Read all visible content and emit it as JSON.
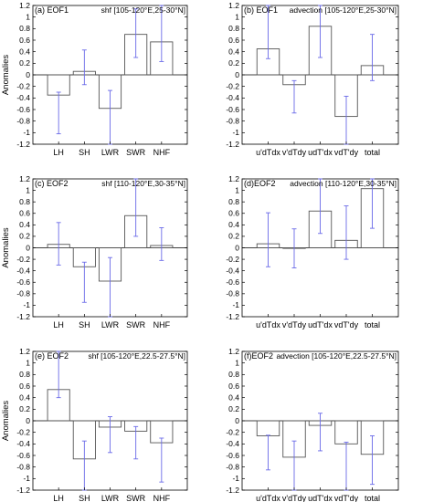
{
  "chart_data": [
    {
      "type": "bar",
      "panel_label": "(a) EOF1",
      "title": "shf  [105-120°E,25-30°N]",
      "ylabel": "Anomalies",
      "ylim": [
        -1.2,
        1.2
      ],
      "yticks": [
        "-1.2",
        "-1",
        "-0.8",
        "-0.6",
        "-0.4",
        "-0.2",
        "0",
        "0.2",
        "0.4",
        "0.6",
        "0.8",
        "1",
        "1.2"
      ],
      "categories": [
        "LH",
        "SH",
        "LWR",
        "SWR",
        "NHF"
      ],
      "values": [
        -0.35,
        0.06,
        -0.58,
        0.7,
        0.57
      ],
      "err_low": [
        -1.02,
        -0.17,
        -1.2,
        0.3,
        0.23
      ],
      "err_high": [
        -0.3,
        0.43,
        -0.27,
        1.14,
        1.2
      ],
      "grid": false
    },
    {
      "type": "bar",
      "panel_label": "(b) EOF1",
      "title": "advection  [105-120°E,25-30°N]",
      "ylabel": "",
      "ylim": [
        -1.2,
        1.2
      ],
      "yticks": [
        "-1.2",
        "-1",
        "-0.8",
        "-0.6",
        "-0.4",
        "-0.2",
        "0",
        "0.2",
        "0.4",
        "0.6",
        "0.8",
        "1",
        "1.2"
      ],
      "categories": [
        "u'dTdx",
        "v'dTdy",
        "udT'dx",
        "vdT'dy",
        "total"
      ],
      "values": [
        0.45,
        -0.17,
        0.84,
        -0.72,
        0.16
      ],
      "err_low": [
        0.28,
        -0.66,
        0.3,
        -1.2,
        -0.1
      ],
      "err_high": [
        1.2,
        -0.1,
        1.2,
        -0.37,
        0.7
      ],
      "grid": false
    },
    {
      "type": "bar",
      "panel_label": "(c) EOF2",
      "title": "shf  [110-120°E,30-35°N]",
      "ylabel": "Anomalies",
      "ylim": [
        -1.2,
        1.2
      ],
      "yticks": [
        "-1.2",
        "-1",
        "-0.8",
        "-0.6",
        "-0.4",
        "-0.2",
        "0",
        "0.2",
        "0.4",
        "0.6",
        "0.8",
        "1",
        "1.2"
      ],
      "categories": [
        "LH",
        "SH",
        "LWR",
        "SWR",
        "NHF"
      ],
      "values": [
        0.06,
        -0.33,
        -0.58,
        0.56,
        0.04
      ],
      "err_low": [
        -0.3,
        -0.95,
        -1.2,
        0.2,
        -0.22
      ],
      "err_high": [
        0.44,
        -0.25,
        -0.17,
        1.2,
        0.35
      ],
      "grid": false
    },
    {
      "type": "bar",
      "panel_label": "(d)EOF2",
      "title": "advection  [110-120°E,30-35°N]",
      "ylabel": "",
      "ylim": [
        -1.2,
        1.2
      ],
      "yticks": [
        "-1.2",
        "-1",
        "-0.8",
        "-0.6",
        "-0.4",
        "-0.2",
        "0",
        "0.2",
        "0.4",
        "0.6",
        "0.8",
        "1",
        "1.2"
      ],
      "categories": [
        "u'dTdx",
        "v'dTdy",
        "udT'dx",
        "vdT'dy",
        "total"
      ],
      "values": [
        0.07,
        -0.01,
        0.64,
        0.13,
        1.03
      ],
      "err_low": [
        -0.33,
        -0.35,
        0.25,
        -0.2,
        0.34
      ],
      "err_high": [
        0.61,
        0.33,
        1.2,
        0.73,
        1.2
      ],
      "grid": false
    },
    {
      "type": "bar",
      "panel_label": "(e) EOF2",
      "title": "shf  [105-120°E,22.5-27.5°N]",
      "ylabel": "Anomalies",
      "ylim": [
        -1.2,
        1.2
      ],
      "yticks": [
        "-1.2",
        "-1",
        "-0.8",
        "-0.6",
        "-0.4",
        "-0.2",
        "0",
        "0.2",
        "0.4",
        "0.6",
        "0.8",
        "1",
        "1.2"
      ],
      "categories": [
        "LH",
        "SH",
        "LWR",
        "SWR",
        "NHF"
      ],
      "values": [
        0.54,
        -0.66,
        -0.11,
        -0.18,
        -0.38
      ],
      "err_low": [
        0.4,
        -1.2,
        -0.55,
        -0.66,
        -1.06
      ],
      "err_high": [
        1.2,
        -0.35,
        0.07,
        -0.1,
        -0.3
      ],
      "grid": false
    },
    {
      "type": "bar",
      "panel_label": "(f)EOF2",
      "title": "advection  [105-120°E,22.5-27.5°N]",
      "ylabel": "",
      "ylim": [
        -1.2,
        1.2
      ],
      "yticks": [
        "-1.2",
        "-1",
        "-0.8",
        "-0.6",
        "-0.4",
        "-0.2",
        "0",
        "0.2",
        "0.4",
        "0.6",
        "0.8",
        "1",
        "1.2"
      ],
      "categories": [
        "u'dTdx",
        "v'dTdy",
        "udT'dx",
        "vdT'dy",
        "total"
      ],
      "values": [
        -0.26,
        -0.63,
        -0.08,
        -0.4,
        -0.58
      ],
      "err_low": [
        -0.85,
        -1.2,
        -0.52,
        -1.2,
        -1.1
      ],
      "err_high": [
        -0.25,
        -0.35,
        0.13,
        -0.37,
        -0.26
      ],
      "grid": false
    }
  ],
  "colors": {
    "bar_edge": "#555555",
    "error_bar": "#6a6ae8",
    "axis": "#000000",
    "background": "#ffffff"
  }
}
